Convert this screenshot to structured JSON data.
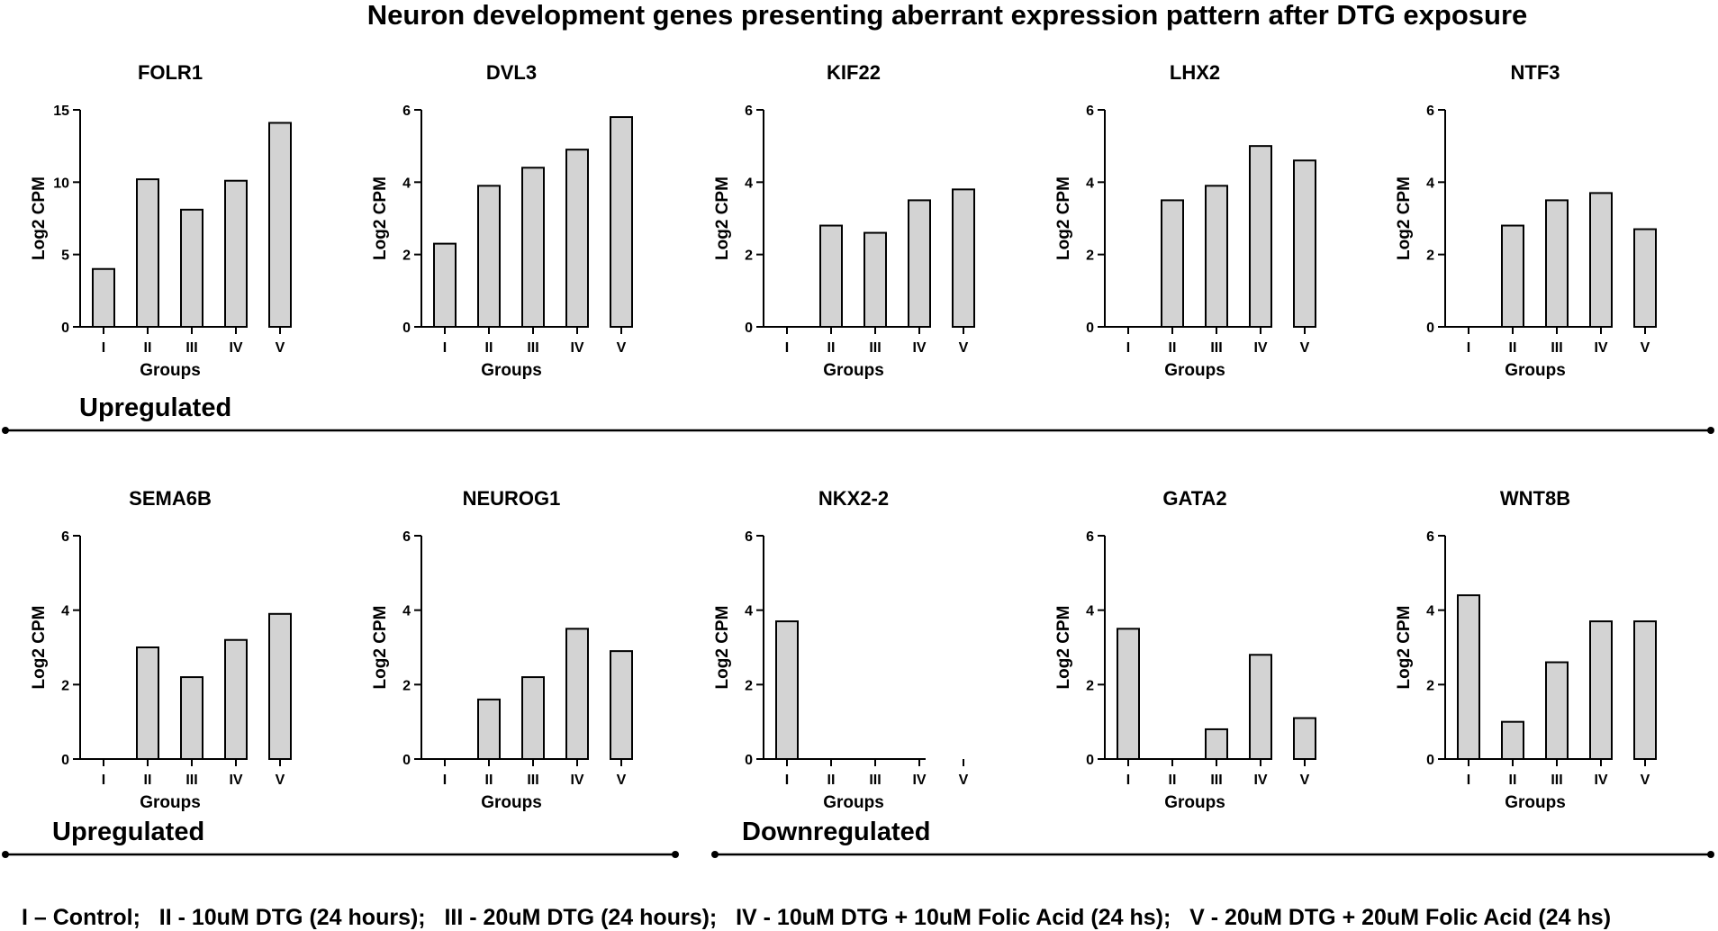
{
  "title": "Neuron development genes presenting aberrant expression pattern after DTG exposure",
  "legend_text": "I – Control;   II - 10uM DTG (24 hours);   III - 20uM DTG (24 hours);   IV - 10uM DTG + 10uM Folic Acid (24 hs);   V - 20uM DTG + 20uM Folic Acid (24 hs)",
  "section_labels": {
    "row1_upregulated": "Upregulated",
    "row2_upregulated": "Upregulated",
    "row2_downregulated": "Downregulated"
  },
  "colors": {
    "bar_fill": "#d3d3d3",
    "bar_stroke": "#000000",
    "axis": "#000000"
  },
  "chart_data": [
    {
      "type": "bar",
      "title": "FOLR1",
      "xlabel": "Groups",
      "ylabel": "Log2 CPM",
      "categories": [
        "I",
        "II",
        "III",
        "IV",
        "V"
      ],
      "values": [
        4.0,
        10.2,
        8.1,
        10.1,
        14.1
      ],
      "ylim": [
        0,
        15
      ],
      "yticks": [
        0,
        5,
        10,
        15
      ]
    },
    {
      "type": "bar",
      "title": "DVL3",
      "xlabel": "Groups",
      "ylabel": "Log2 CPM",
      "categories": [
        "I",
        "II",
        "III",
        "IV",
        "V"
      ],
      "values": [
        2.3,
        3.9,
        4.4,
        4.9,
        5.8
      ],
      "ylim": [
        0,
        6
      ],
      "yticks": [
        0,
        2,
        4,
        6
      ]
    },
    {
      "type": "bar",
      "title": "KIF22",
      "xlabel": "Groups",
      "ylabel": "Log2 CPM",
      "categories": [
        "I",
        "II",
        "III",
        "IV",
        "V"
      ],
      "values": [
        0,
        2.8,
        2.6,
        3.5,
        3.8
      ],
      "ylim": [
        0,
        6
      ],
      "yticks": [
        0,
        2,
        4,
        6
      ]
    },
    {
      "type": "bar",
      "title": "LHX2",
      "xlabel": "Groups",
      "ylabel": "Log2 CPM",
      "categories": [
        "I",
        "II",
        "III",
        "IV",
        "V"
      ],
      "values": [
        0,
        3.5,
        3.9,
        5.0,
        4.6
      ],
      "ylim": [
        0,
        6
      ],
      "yticks": [
        0,
        2,
        4,
        6
      ]
    },
    {
      "type": "bar",
      "title": "NTF3",
      "xlabel": "Groups",
      "ylabel": "Log2 CPM",
      "categories": [
        "I",
        "II",
        "III",
        "IV",
        "V"
      ],
      "values": [
        0,
        2.8,
        3.5,
        3.7,
        2.7
      ],
      "ylim": [
        0,
        6
      ],
      "yticks": [
        0,
        2,
        4,
        6
      ]
    },
    {
      "type": "bar",
      "title": "SEMA6B",
      "xlabel": "Groups",
      "ylabel": "Log2 CPM",
      "categories": [
        "I",
        "II",
        "III",
        "IV",
        "V"
      ],
      "values": [
        0,
        3.0,
        2.2,
        3.2,
        3.9
      ],
      "ylim": [
        0,
        6
      ],
      "yticks": [
        0,
        2,
        4,
        6
      ]
    },
    {
      "type": "bar",
      "title": "NEUROG1",
      "xlabel": "Groups",
      "ylabel": "Log2 CPM",
      "categories": [
        "I",
        "II",
        "III",
        "IV",
        "V"
      ],
      "values": [
        0,
        1.6,
        2.2,
        3.5,
        2.9
      ],
      "ylim": [
        0,
        6
      ],
      "yticks": [
        0,
        2,
        4,
        6
      ]
    },
    {
      "type": "bar",
      "title": "NKX2-2",
      "xlabel": "Groups",
      "ylabel": "Log2 CPM",
      "categories": [
        "I",
        "II",
        "III",
        "IV",
        "V"
      ],
      "values": [
        3.7,
        0,
        0,
        0,
        0
      ],
      "ylim": [
        0,
        6
      ],
      "yticks": [
        0,
        2,
        4,
        6
      ]
    },
    {
      "type": "bar",
      "title": "GATA2",
      "xlabel": "Groups",
      "ylabel": "Log2 CPM",
      "categories": [
        "I",
        "II",
        "III",
        "IV",
        "V"
      ],
      "values": [
        3.5,
        0,
        0.8,
        2.8,
        1.1
      ],
      "ylim": [
        0,
        6
      ],
      "yticks": [
        0,
        2,
        4,
        6
      ]
    },
    {
      "type": "bar",
      "title": "WNT8B",
      "xlabel": "Groups",
      "ylabel": "Log2 CPM",
      "categories": [
        "I",
        "II",
        "III",
        "IV",
        "V"
      ],
      "values": [
        4.4,
        1.0,
        2.6,
        3.7,
        3.7
      ],
      "ylim": [
        0,
        6
      ],
      "yticks": [
        0,
        2,
        4,
        6
      ]
    }
  ]
}
